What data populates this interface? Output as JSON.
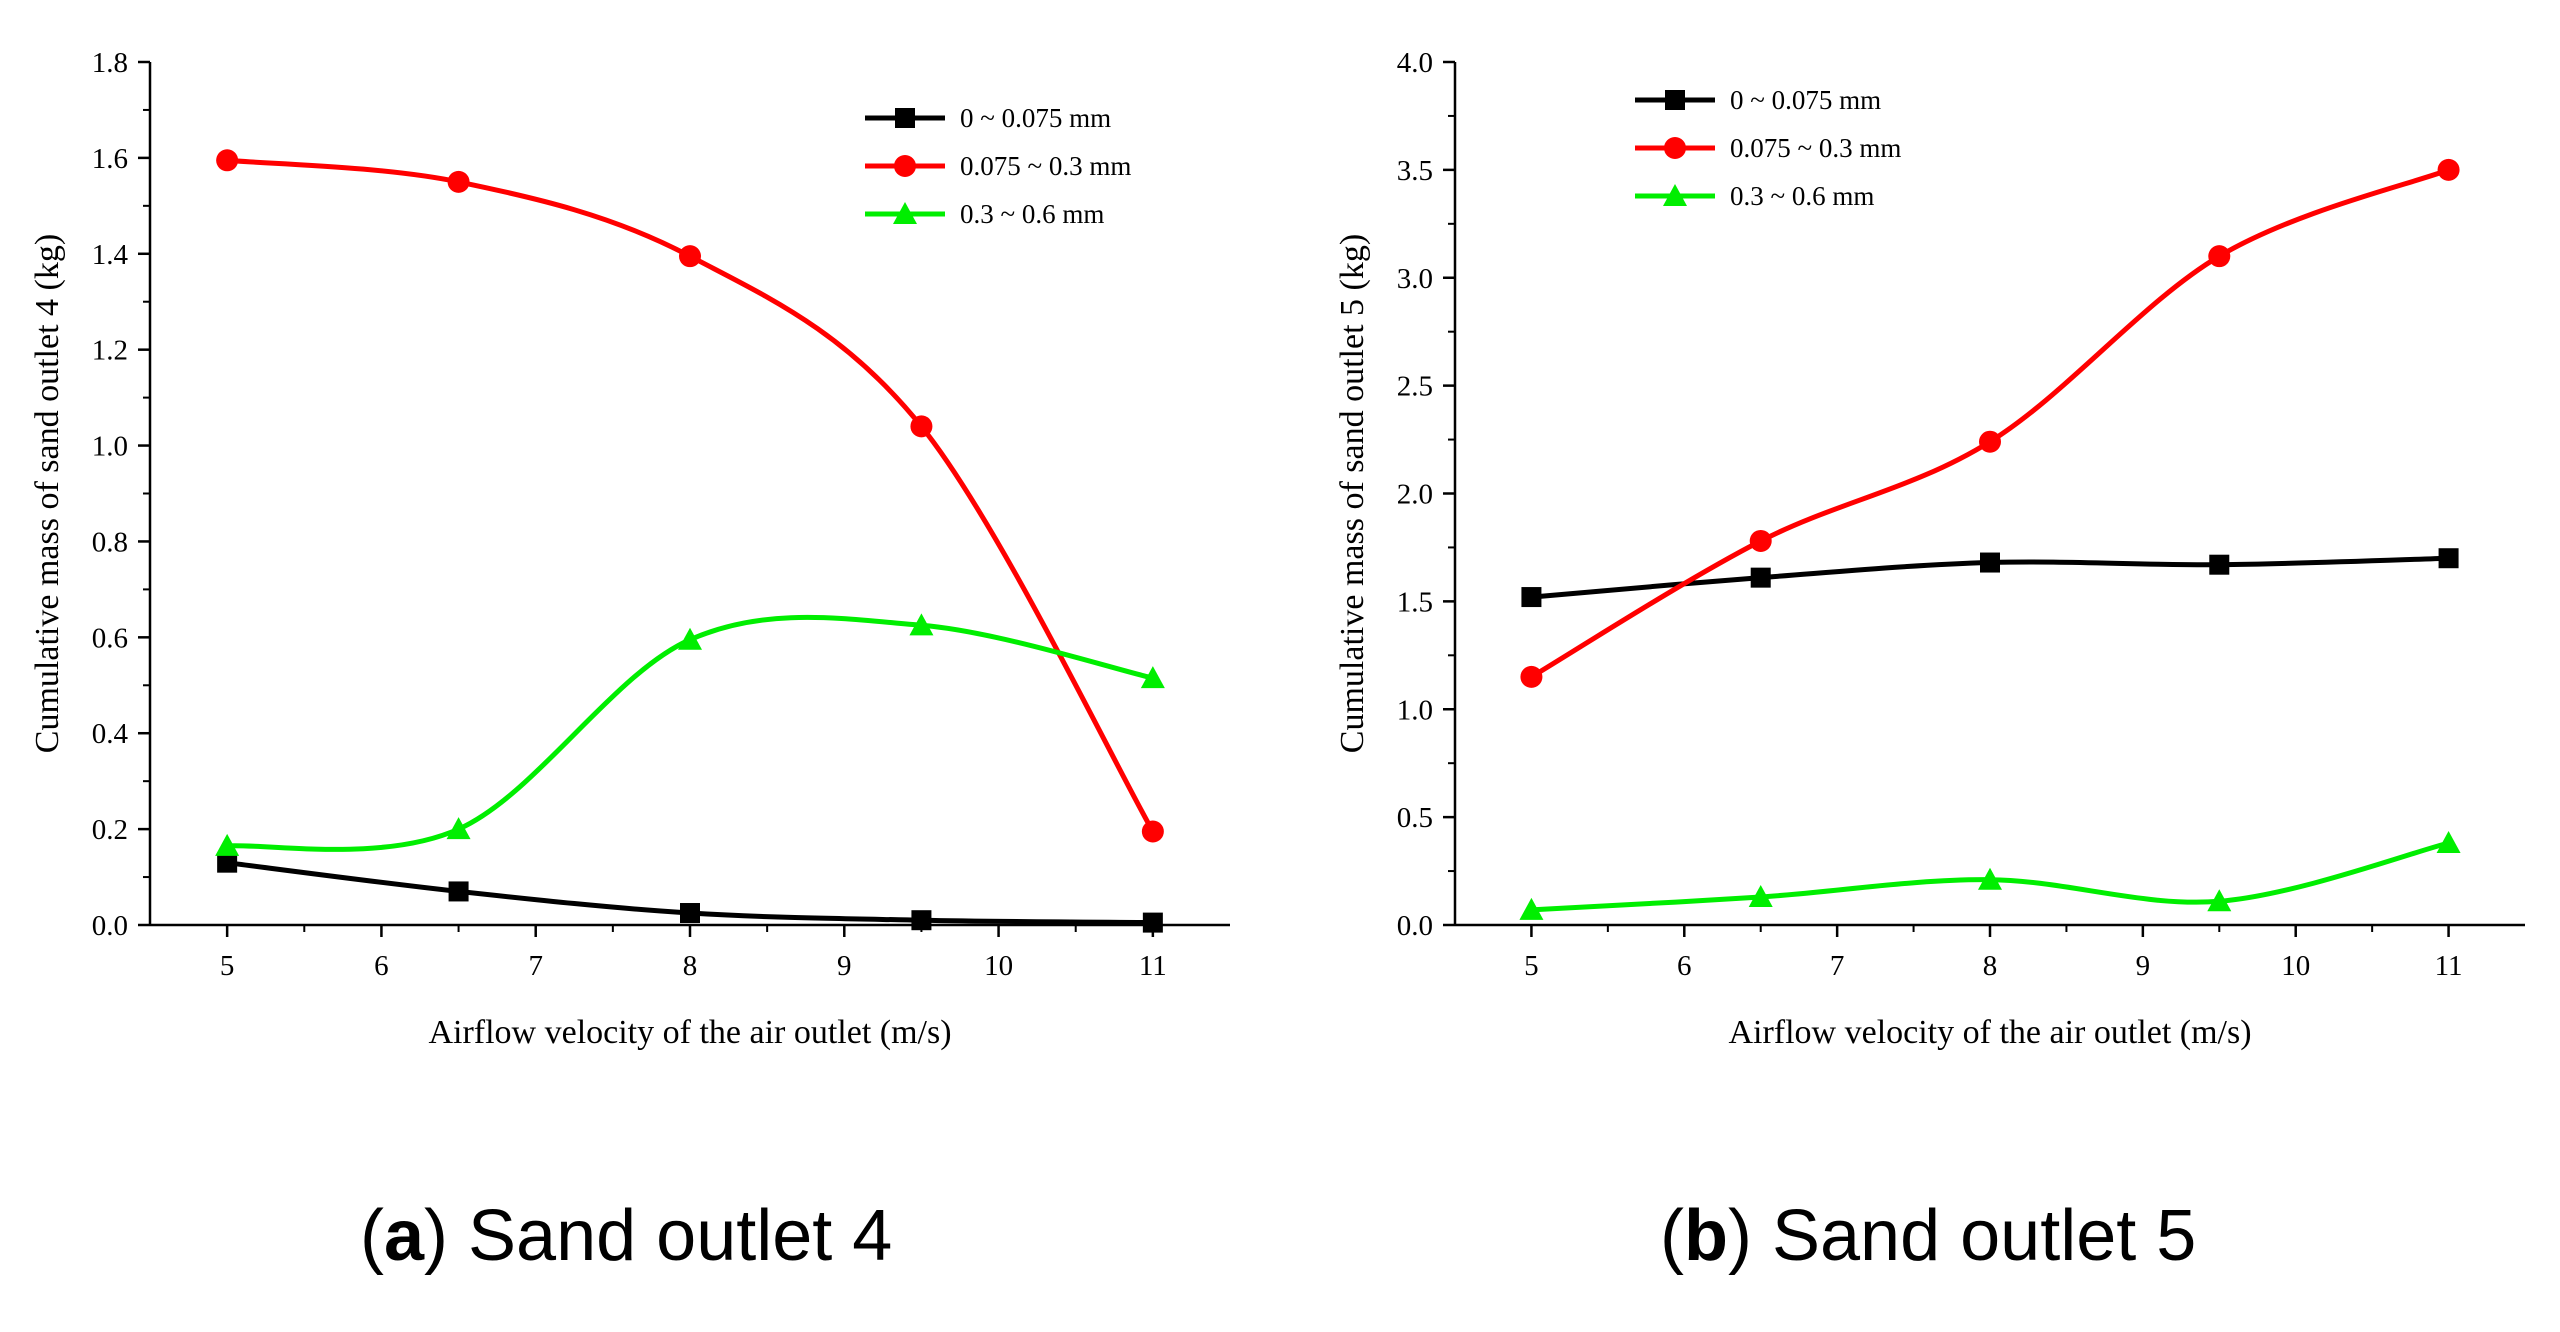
{
  "chart_data": [
    {
      "type": "line",
      "panel_letter": "a",
      "caption": "Sand outlet 4",
      "xlabel": "Airflow velocity of the air outlet (m/s)",
      "ylabel": "Cumulative mass of sand outlet 4 (kg)",
      "xlim": [
        4.5,
        11.5
      ],
      "ylim": [
        0.0,
        1.8
      ],
      "xticks": [
        5,
        6,
        7,
        8,
        9,
        10,
        11
      ],
      "yticks": [
        0.0,
        0.2,
        0.4,
        0.6,
        0.8,
        1.0,
        1.2,
        1.4,
        1.6,
        1.8
      ],
      "ytick_decimals": 1,
      "legend_position": "top-right",
      "grid": false,
      "x": [
        5,
        6.5,
        8,
        9.5,
        11
      ],
      "series": [
        {
          "name": "0 ~ 0.075 mm",
          "color": "#000000",
          "marker": "square",
          "values": [
            0.13,
            0.07,
            0.025,
            0.01,
            0.005
          ]
        },
        {
          "name": "0.075 ~ 0.3 mm",
          "color": "#ff0000",
          "marker": "circle",
          "values": [
            1.595,
            1.55,
            1.395,
            1.04,
            0.195
          ]
        },
        {
          "name": "0.3 ~ 0.6 mm",
          "color": "#00ee00",
          "marker": "triangle",
          "values": [
            0.165,
            0.2,
            0.595,
            0.625,
            0.515
          ]
        }
      ]
    },
    {
      "type": "line",
      "panel_letter": "b",
      "caption": "Sand outlet 5",
      "xlabel": "Airflow velocity of the air outlet (m/s)",
      "ylabel": "Cumulative mass of sand outlet 5 (kg)",
      "xlim": [
        4.5,
        11.5
      ],
      "ylim": [
        0.0,
        4.0
      ],
      "xticks": [
        5,
        6,
        7,
        8,
        9,
        10,
        11
      ],
      "yticks": [
        0.0,
        0.5,
        1.0,
        1.5,
        2.0,
        2.5,
        3.0,
        3.5,
        4.0
      ],
      "ytick_decimals": 1,
      "legend_position": "top-left",
      "grid": false,
      "x": [
        5,
        6.5,
        8,
        9.5,
        11
      ],
      "series": [
        {
          "name": "0 ~ 0.075 mm",
          "color": "#000000",
          "marker": "square",
          "values": [
            1.52,
            1.61,
            1.68,
            1.67,
            1.7
          ]
        },
        {
          "name": "0.075 ~ 0.3 mm",
          "color": "#ff0000",
          "marker": "circle",
          "values": [
            1.15,
            1.78,
            2.24,
            3.1,
            3.5
          ]
        },
        {
          "name": "0.3 ~ 0.6 mm",
          "color": "#00ee00",
          "marker": "triangle",
          "values": [
            0.07,
            0.13,
            0.21,
            0.11,
            0.38
          ]
        }
      ]
    }
  ]
}
